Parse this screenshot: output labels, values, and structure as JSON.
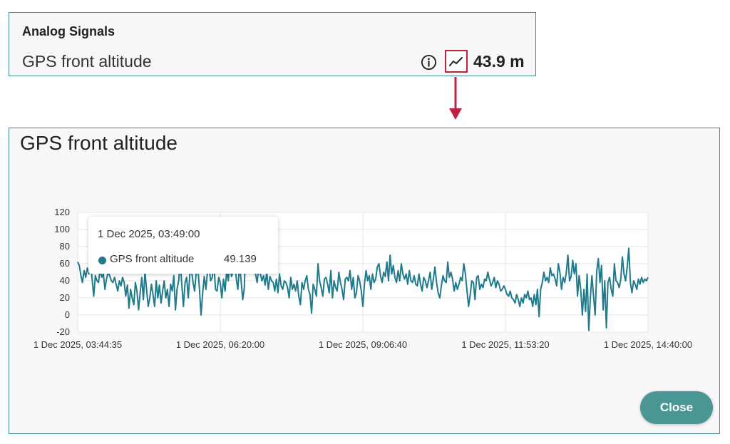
{
  "signal_card": {
    "section_title": "Analog Signals",
    "signal_name": "GPS front altitude",
    "value": "43.9 m",
    "info_icon": "info-icon",
    "trend_icon": "trend-chart-icon",
    "highlight_color": "#c0203f"
  },
  "modal": {
    "title": "GPS front altitude",
    "close_label": "Close",
    "tooltip": {
      "time": "1 Dec 2025, 03:49:00",
      "series": "GPS front altitude",
      "value": "49.139"
    }
  },
  "chart_data": {
    "type": "line",
    "xlabel": "",
    "ylabel": "",
    "ylim": [
      -20,
      120
    ],
    "yticks": [
      -20,
      0,
      20,
      40,
      60,
      80,
      100,
      120
    ],
    "xticks": [
      "1 Dec 2025, 03:44:35",
      "1 Dec 2025, 06:20:00",
      "1 Dec 2025, 09:06:40",
      "1 Dec 2025, 11:53:20",
      "1 Dec 2025, 14:40:00"
    ],
    "grid": true,
    "series": [
      {
        "name": "GPS front altitude",
        "color": "#1f7a8c",
        "values": [
          62,
          58,
          46,
          38,
          52,
          44,
          55,
          48,
          62,
          42,
          22,
          46,
          40,
          38,
          55,
          44,
          48,
          30,
          42,
          50,
          46,
          40,
          38,
          44,
          36,
          28,
          40,
          34,
          44,
          38,
          22,
          35,
          8,
          30,
          20,
          12,
          38,
          28,
          6,
          26,
          44,
          18,
          50,
          30,
          10,
          20,
          36,
          24,
          10,
          40,
          20,
          35,
          14,
          28,
          40,
          20,
          30,
          10,
          36,
          28,
          46,
          6,
          30,
          40,
          62,
          35,
          10,
          38,
          44,
          20,
          48,
          52,
          38,
          28,
          50,
          56,
          30,
          0,
          26,
          45,
          30,
          50,
          55,
          40,
          44,
          60,
          30,
          28,
          44,
          38,
          20,
          42,
          28,
          52,
          40,
          60,
          45,
          50,
          62,
          42,
          30,
          60,
          40,
          18,
          32,
          88,
          65,
          52,
          55,
          60,
          70,
          48,
          38,
          55,
          48,
          40,
          46,
          35,
          50,
          30,
          45,
          40,
          38,
          28,
          42,
          26,
          48,
          34,
          30,
          40,
          38,
          32,
          20,
          44,
          30,
          36,
          28,
          40,
          22,
          12,
          38,
          30,
          40,
          46,
          30,
          24,
          2,
          36,
          30,
          22,
          60,
          40,
          32,
          22,
          42,
          44,
          36,
          26,
          52,
          20,
          40,
          32,
          28,
          50,
          38,
          30,
          18,
          42,
          44,
          40,
          52,
          30,
          44,
          20,
          26,
          46,
          40,
          28,
          10,
          36,
          52,
          40,
          46,
          30,
          48,
          38,
          42,
          56,
          60,
          46,
          38,
          50,
          45,
          62,
          40,
          70,
          48,
          58,
          44,
          38,
          52,
          40,
          60,
          48,
          42,
          48,
          36,
          52,
          40,
          38,
          46,
          36,
          34,
          48,
          36,
          28,
          44,
          40,
          32,
          40,
          50,
          30,
          42,
          56,
          38,
          26,
          20,
          34,
          46,
          40,
          38,
          62,
          44,
          50,
          42,
          28,
          38,
          30,
          36,
          44,
          40,
          60,
          48,
          28,
          10,
          24,
          40,
          38,
          18,
          44,
          46,
          30,
          36,
          32,
          42,
          40,
          50,
          42,
          34,
          38,
          44,
          32,
          40,
          36,
          28,
          30,
          34,
          30,
          24,
          22,
          28,
          20,
          18,
          14,
          24,
          18,
          10,
          20,
          14,
          24,
          20,
          28,
          18,
          20,
          10,
          24,
          12,
          30,
          -2,
          30,
          38,
          50,
          40,
          44,
          38,
          55,
          46,
          48,
          42,
          34,
          60,
          50,
          30,
          44,
          38,
          50,
          70,
          40,
          45,
          64,
          48,
          60,
          22,
          46,
          30,
          0,
          30,
          4,
          48,
          -18,
          20,
          46,
          22,
          0,
          52,
          66,
          38,
          58,
          6,
          40,
          -15,
          38,
          44,
          30,
          22,
          60,
          40,
          38,
          32,
          42,
          68,
          48,
          40,
          56,
          78,
          38,
          26,
          40,
          36,
          30,
          42,
          36,
          44,
          38,
          42,
          40,
          44
        ]
      }
    ]
  }
}
